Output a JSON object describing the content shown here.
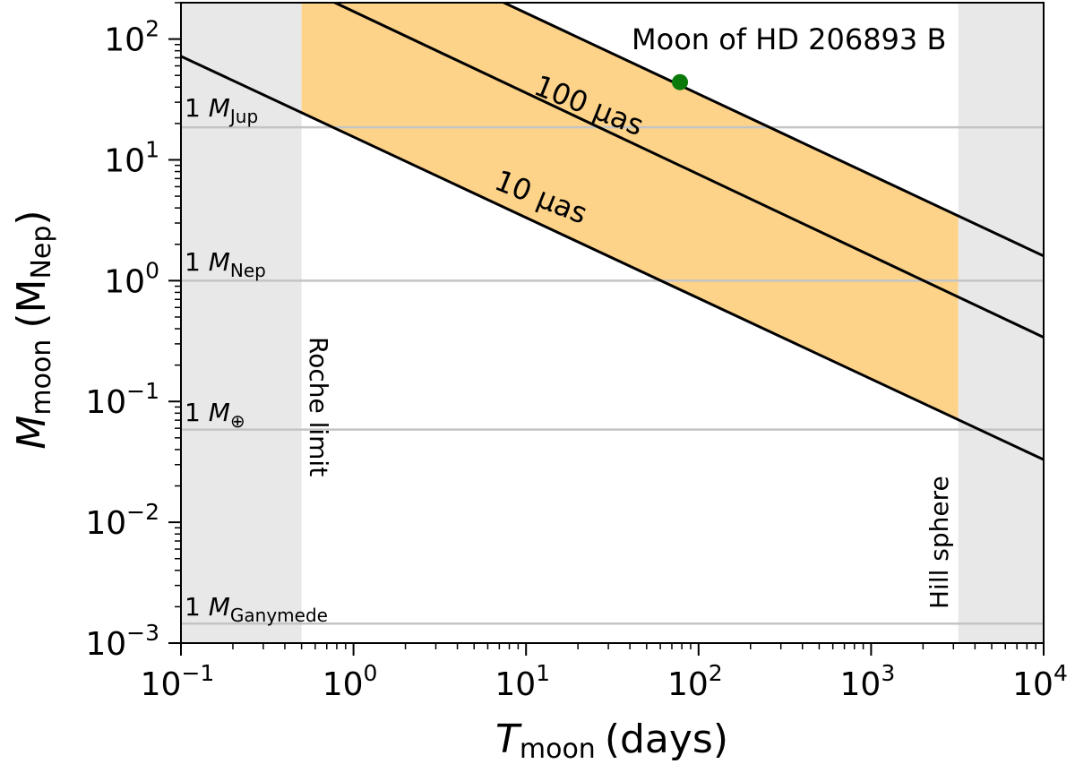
{
  "chart_data": {
    "type": "line",
    "x_scale": "log",
    "y_scale": "log",
    "xlim": [
      0.1,
      10000
    ],
    "ylim": [
      0.001,
      200
    ],
    "grid": false,
    "x_ticks": [
      {
        "value": 0.1,
        "base": "10",
        "exp": "−1"
      },
      {
        "value": 1,
        "base": "10",
        "exp": "0"
      },
      {
        "value": 10,
        "base": "10",
        "exp": "1"
      },
      {
        "value": 100,
        "base": "10",
        "exp": "2"
      },
      {
        "value": 1000,
        "base": "10",
        "exp": "3"
      },
      {
        "value": 10000,
        "base": "10",
        "exp": "4"
      }
    ],
    "y_ticks": [
      {
        "value": 0.001,
        "base": "10",
        "exp": "−3"
      },
      {
        "value": 0.01,
        "base": "10",
        "exp": "−2"
      },
      {
        "value": 0.1,
        "base": "10",
        "exp": "−1"
      },
      {
        "value": 1,
        "base": "10",
        "exp": "0"
      },
      {
        "value": 10,
        "base": "10",
        "exp": "1"
      },
      {
        "value": 100,
        "base": "10",
        "exp": "2"
      }
    ],
    "xlabel": {
      "main": "T",
      "sub": "moon",
      "unit": "(days)"
    },
    "ylabel": {
      "main": "M",
      "sub": "moon",
      "unit_open": "(M",
      "unit_sub": "Nep",
      "unit_close": ")"
    },
    "regions": [
      {
        "name": "Roche limit",
        "x_from": 0.1,
        "x_to": 0.5,
        "color": "#e8e8e8"
      },
      {
        "name": "Hill sphere",
        "x_from": 3200,
        "x_to": 10000,
        "color": "#e8e8e8"
      }
    ],
    "shaded_band": {
      "x_from": 0.5,
      "x_to": 3200,
      "lower_series": "10 μas",
      "upper_series": "outer",
      "color": "#fdd38a"
    },
    "series": [
      {
        "name": "10 μas",
        "points": [
          [
            0.1,
            72
          ],
          [
            10000,
            0.033
          ]
        ],
        "color": "#000000"
      },
      {
        "name": "100 μas",
        "points": [
          [
            0.1,
            800
          ],
          [
            10000,
            0.34
          ]
        ],
        "color": "#000000"
      },
      {
        "key": "outer",
        "points": [
          [
            0.1,
            3600
          ],
          [
            10000,
            1.6
          ]
        ],
        "color": "#000000"
      }
    ],
    "reference_lines": [
      {
        "value": 18.6,
        "label_prefix": "1 ",
        "label_main": "M",
        "label_sub": "Jup"
      },
      {
        "value": 1.0,
        "label_prefix": "1 ",
        "label_main": "M",
        "label_sub": "Nep"
      },
      {
        "value": 0.0585,
        "label_prefix": "1 ",
        "label_main": "M",
        "label_sub": "⊕"
      },
      {
        "value": 0.00145,
        "label_prefix": "1 ",
        "label_main": "M",
        "label_sub": "Ganymede"
      }
    ],
    "region_labels": [
      "Roche limit",
      "Hill sphere"
    ],
    "points": [
      {
        "label": "Moon of HD 206893 B",
        "x": 78,
        "y": 44,
        "color": "#0a7a0a"
      }
    ],
    "line_labels": [
      "100 μas",
      "10 μas"
    ]
  }
}
